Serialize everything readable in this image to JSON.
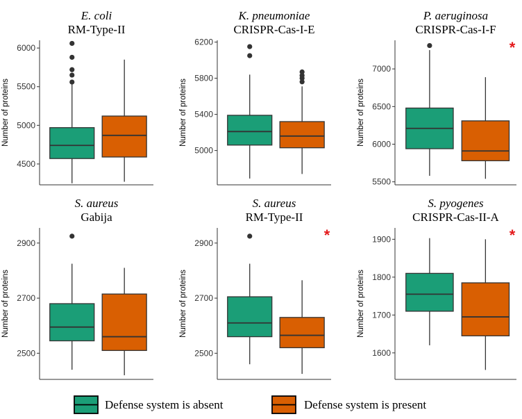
{
  "chart_data": [
    {
      "type": "box",
      "species": "E. coli",
      "system": "RM-Type-II",
      "ylabel": "Number of proteins",
      "ylim": [
        4230,
        6100
      ],
      "yticks": [
        4500,
        5000,
        5500,
        6000
      ],
      "significant": false,
      "groups": [
        {
          "name": "absent",
          "whisker_low": 4250,
          "q1": 4570,
          "median": 4740,
          "q3": 4970,
          "whisker_high": 5530,
          "outliers": [
            5560,
            5650,
            5720,
            5880,
            6060
          ]
        },
        {
          "name": "present",
          "whisker_low": 4270,
          "q1": 4590,
          "median": 4870,
          "q3": 5120,
          "whisker_high": 5850,
          "outliers": []
        }
      ]
    },
    {
      "type": "box",
      "species": "K. pneumoniae",
      "system": "CRISPR-Cas-I-E",
      "ylabel": "Number of proteins",
      "ylim": [
        4620,
        6220
      ],
      "yticks": [
        5000,
        5400,
        5800,
        6200
      ],
      "significant": false,
      "groups": [
        {
          "name": "absent",
          "whisker_low": 4690,
          "q1": 5060,
          "median": 5210,
          "q3": 5390,
          "whisker_high": 5840,
          "outliers": [
            6050,
            6150
          ]
        },
        {
          "name": "present",
          "whisker_low": 4740,
          "q1": 5030,
          "median": 5160,
          "q3": 5320,
          "whisker_high": 5710,
          "outliers": [
            5760,
            5800,
            5830,
            5870
          ]
        }
      ]
    },
    {
      "type": "box",
      "species": "P. aeruginosa",
      "system": "CRISPR-Cas-I-F",
      "ylabel": "Number of proteins",
      "ylim": [
        5460,
        7380
      ],
      "yticks": [
        5500,
        6000,
        6500,
        7000
      ],
      "significant": true,
      "star": "*",
      "groups": [
        {
          "name": "absent",
          "whisker_low": 5580,
          "q1": 5940,
          "median": 6210,
          "q3": 6480,
          "whisker_high": 7250,
          "outliers": [
            7310
          ]
        },
        {
          "name": "present",
          "whisker_low": 5540,
          "q1": 5780,
          "median": 5910,
          "q3": 6310,
          "whisker_high": 6890,
          "outliers": []
        }
      ]
    },
    {
      "type": "box",
      "species": "S. aureus",
      "system": "Gabija",
      "ylabel": "Number of proteins",
      "ylim": [
        2405,
        2955
      ],
      "yticks": [
        2500,
        2700,
        2900
      ],
      "significant": false,
      "groups": [
        {
          "name": "absent",
          "whisker_low": 2440,
          "q1": 2545,
          "median": 2595,
          "q3": 2680,
          "whisker_high": 2825,
          "outliers": [
            2925
          ]
        },
        {
          "name": "present",
          "whisker_low": 2420,
          "q1": 2510,
          "median": 2560,
          "q3": 2715,
          "whisker_high": 2810,
          "outliers": []
        }
      ]
    },
    {
      "type": "box",
      "species": "S. aureus",
      "system": "RM-Type-II",
      "ylabel": "Number of proteins",
      "ylim": [
        2405,
        2955
      ],
      "yticks": [
        2500,
        2700,
        2900
      ],
      "significant": true,
      "star": "*",
      "groups": [
        {
          "name": "absent",
          "whisker_low": 2460,
          "q1": 2560,
          "median": 2610,
          "q3": 2705,
          "whisker_high": 2825,
          "outliers": [
            2925
          ]
        },
        {
          "name": "present",
          "whisker_low": 2425,
          "q1": 2520,
          "median": 2565,
          "q3": 2630,
          "whisker_high": 2765,
          "outliers": []
        }
      ]
    },
    {
      "type": "box",
      "species": "S. pyogenes",
      "system": "CRISPR-Cas-II-A",
      "ylabel": "Number of proteins",
      "ylim": [
        1530,
        1930
      ],
      "yticks": [
        1600,
        1700,
        1800,
        1900
      ],
      "significant": true,
      "star": "*",
      "groups": [
        {
          "name": "absent",
          "whisker_low": 1620,
          "q1": 1710,
          "median": 1755,
          "q3": 1810,
          "whisker_high": 1903,
          "outliers": []
        },
        {
          "name": "present",
          "whisker_low": 1555,
          "q1": 1645,
          "median": 1695,
          "q3": 1785,
          "whisker_high": 1900,
          "outliers": []
        }
      ]
    }
  ],
  "legend": {
    "position": "bottom",
    "items": [
      {
        "key": "absent",
        "label": "Defense system is absent",
        "color": "#1b9e77"
      },
      {
        "key": "present",
        "label": "Defense system is present",
        "color": "#d95f02"
      }
    ]
  },
  "colors": {
    "box_border": "#333333",
    "outlier": "#333333",
    "axis": "#333333",
    "star": "#e41a1c"
  }
}
